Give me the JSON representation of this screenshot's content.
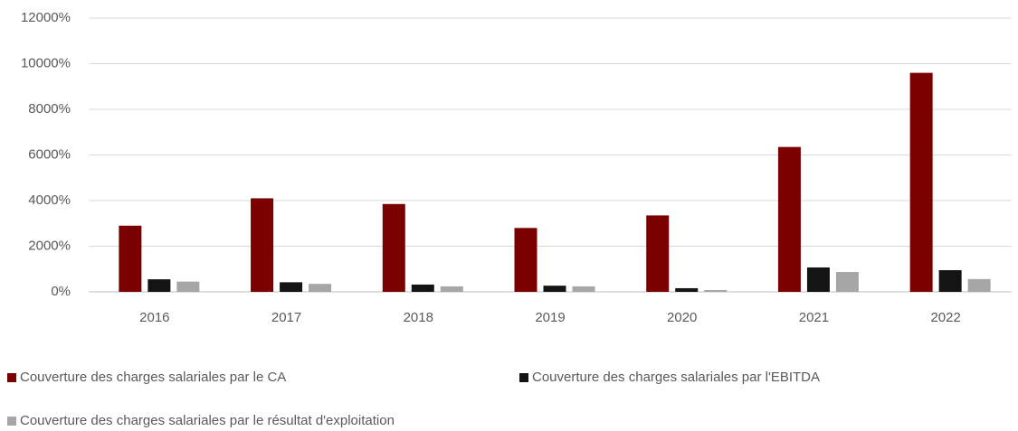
{
  "chart_data": {
    "type": "bar",
    "categories": [
      "2016",
      "2017",
      "2018",
      "2019",
      "2020",
      "2021",
      "2022"
    ],
    "series": [
      {
        "name": "Couverture des charges salariales par le CA",
        "color": "#7b0000",
        "values": [
          2900,
          4100,
          3850,
          2800,
          3350,
          6350,
          9600
        ]
      },
      {
        "name": "Couverture des charges salariales par l'EBITDA",
        "color": "#141414",
        "values": [
          550,
          420,
          320,
          270,
          160,
          1070,
          950
        ]
      },
      {
        "name": "Couverture des charges salariales par le résultat d'exploitation",
        "color": "#a6a6a6",
        "values": [
          450,
          350,
          240,
          240,
          80,
          870,
          560
        ]
      }
    ],
    "ylim": [
      0,
      12000
    ],
    "yticks": [
      {
        "value": 0,
        "label": "0%"
      },
      {
        "value": 2000,
        "label": "2000%"
      },
      {
        "value": 4000,
        "label": "4000%"
      },
      {
        "value": 6000,
        "label": "6000%"
      },
      {
        "value": 8000,
        "label": "8000%"
      },
      {
        "value": 10000,
        "label": "10000%"
      },
      {
        "value": 12000,
        "label": "12000%"
      }
    ],
    "grid": true,
    "legend": "bottom"
  }
}
